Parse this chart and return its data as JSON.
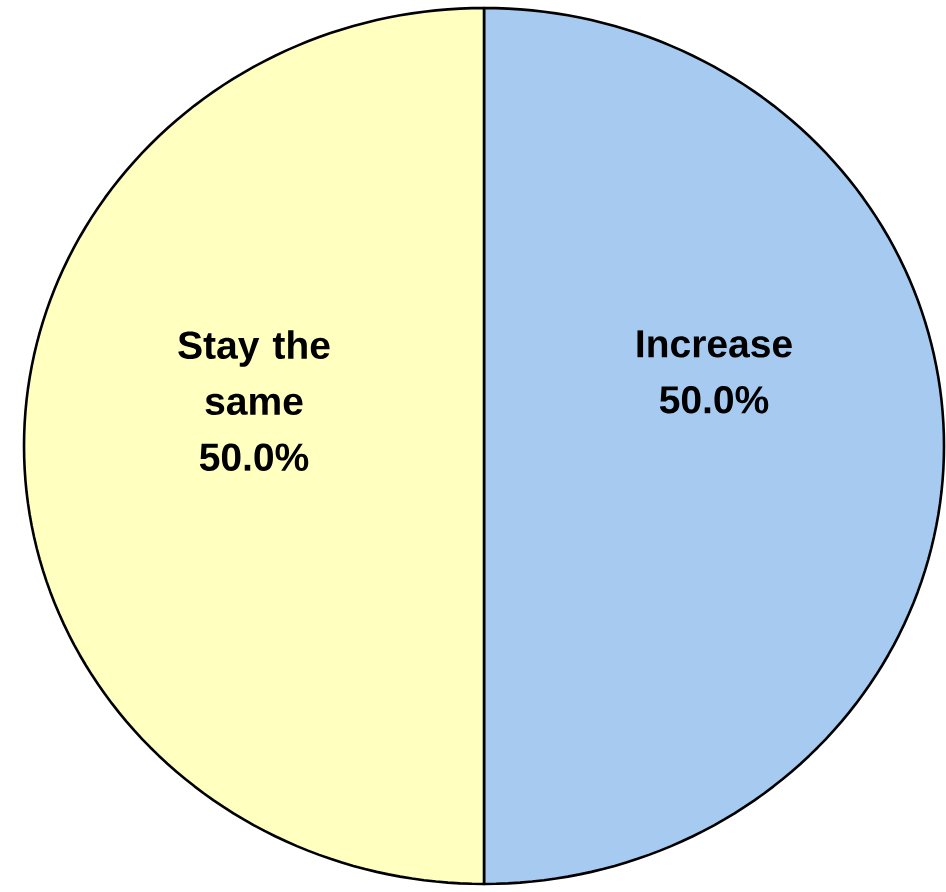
{
  "chart_data": {
    "type": "pie",
    "categories": [
      "Increase",
      "Stay the same"
    ],
    "values": [
      50,
      50
    ],
    "colors": [
      "#a6caf0",
      "#ffffc0"
    ],
    "value_labels": [
      "50.0%",
      "50.0%"
    ]
  }
}
